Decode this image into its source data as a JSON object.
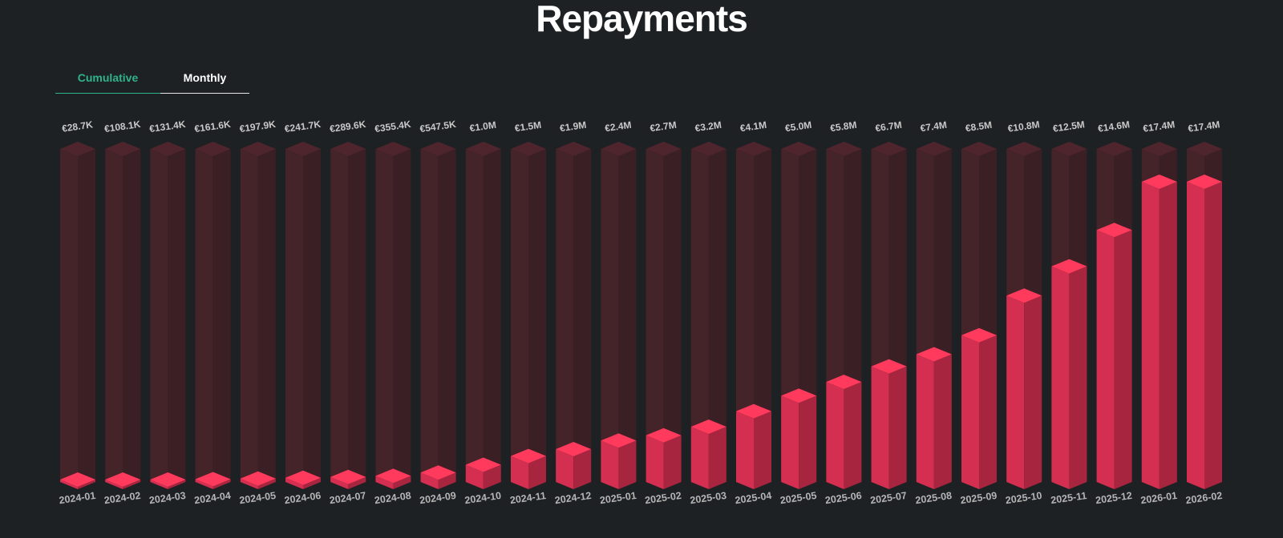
{
  "title": "Repayments",
  "tabs": {
    "cumulative": "Cumulative",
    "monthly": "Monthly"
  },
  "colors": {
    "background": "#1e2124",
    "accent_tab": "#2fb38a",
    "bar_front": "#d42f50",
    "bar_side": "#a8253f",
    "bar_top": "#ff3a5c",
    "track_front": "#442329",
    "track_side": "#3a1f25",
    "track_top": "#4f252d"
  },
  "chart_data": {
    "type": "bar",
    "style": "3d-isometric",
    "categories": [
      "2024-01",
      "2024-02",
      "2024-03",
      "2024-04",
      "2024-05",
      "2024-06",
      "2024-07",
      "2024-08",
      "2024-09",
      "2024-10",
      "2024-11",
      "2024-12",
      "2025-01",
      "2025-02",
      "2025-03",
      "2025-04",
      "2025-05",
      "2025-06",
      "2025-07",
      "2025-08",
      "2025-09",
      "2025-10",
      "2025-11",
      "2025-12",
      "2026-01",
      "2026-02"
    ],
    "values": [
      28700,
      108100,
      131400,
      161600,
      197900,
      241700,
      289600,
      355400,
      547500,
      1000000,
      1500000,
      1900000,
      2400000,
      2700000,
      3200000,
      4100000,
      5000000,
      5800000,
      6700000,
      7400000,
      8500000,
      10800000,
      12500000,
      14600000,
      17400000,
      17400000
    ],
    "labels": [
      "€28.7K",
      "€108.1K",
      "€131.4K",
      "€161.6K",
      "€197.9K",
      "€241.7K",
      "€289.6K",
      "€355.4K",
      "€547.5K",
      "€1.0M",
      "€1.5M",
      "€1.9M",
      "€2.4M",
      "€2.7M",
      "€3.2M",
      "€4.1M",
      "€5.0M",
      "€5.8M",
      "€6.7M",
      "€7.4M",
      "€8.5M",
      "€10.8M",
      "€12.5M",
      "€14.6M",
      "€17.4M",
      "€17.4M"
    ],
    "ylim": [
      0,
      19300000
    ],
    "legend": "none",
    "grid": false
  }
}
